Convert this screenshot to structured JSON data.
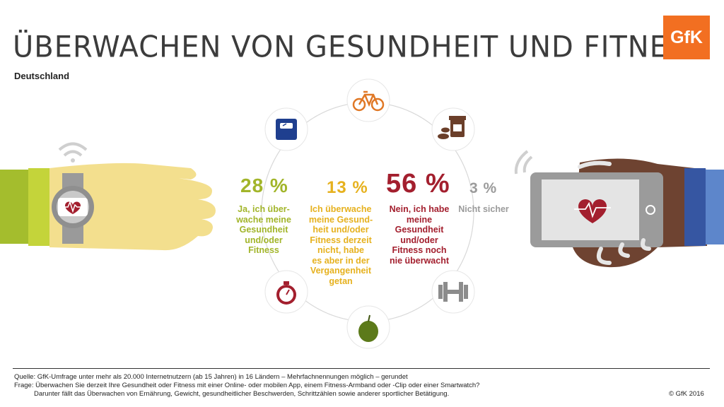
{
  "header": {
    "title": "ÜBERWACHEN VON GESUNDHEIT UND FITNESS",
    "subtitle": "Deutschland",
    "logo": "GfK"
  },
  "colors": {
    "yes": "#a2b52a",
    "formerly": "#e6b11e",
    "no": "#a31f2e",
    "unsure": "#9b9b9b",
    "brand": "#f26f21"
  },
  "icons": [
    "bicycle-icon",
    "supplements-icon",
    "dumbbell-icon",
    "apple-icon",
    "stopwatch-icon",
    "scale-icon",
    "smartwatch-icon",
    "smartphone-icon",
    "wifi-icon"
  ],
  "chart_data": {
    "type": "table",
    "title": "ÜBERWACHEN VON GESUNDHEIT UND FITNESS",
    "subtitle": "Deutschland",
    "unit": "%",
    "items": [
      {
        "value": 28,
        "value_label": "28 %",
        "label": "Ja, ich über-wache meine Gesundheit und/oder Fitness"
      },
      {
        "value": 13,
        "value_label": "13 %",
        "label": "Ich überwache meine Gesund-heit und/oder Fitness derzeit nicht, habe es aber in der Vergangenheit getan"
      },
      {
        "value": 56,
        "value_label": "56 %",
        "label": "Nein, ich habe meine Gesundheit und/oder Fitness noch nie überwacht"
      },
      {
        "value": 3,
        "value_label": "3 %",
        "label": "Nicht sicher"
      }
    ]
  },
  "labels": {
    "yes": [
      "Ja, ich über-",
      "wache meine",
      "Gesundheit",
      "und/oder",
      "Fitness"
    ],
    "formerly": [
      "Ich überwache",
      "meine Gesund-",
      "heit und/oder",
      "Fitness derzeit",
      "nicht, habe",
      "es aber in der",
      "Vergangenheit",
      "getan"
    ],
    "no": [
      "Nein, ich habe",
      "meine",
      "Gesundheit",
      "und/oder",
      "Fitness noch",
      "nie überwacht"
    ],
    "unsure": [
      "Nicht sicher"
    ]
  },
  "footer": {
    "source": "Quelle: GfK-Umfrage unter mehr als 20.000 Internetnutzern (ab 15 Jahren) in 16 Ländern – Mehrfachnennungen möglich – gerundet",
    "question": "Frage: Überwachen Sie derzeit Ihre Gesundheit oder Fitness mit einer Online- oder mobilen App, einem Fitness-Armband  oder -Clip oder einer Smartwatch?",
    "note": "Darunter fällt das Überwachen von Ernährung, Gewicht, gesundheitlicher Beschwerden, Schrittzählen sowie anderer sportlicher Betätigung.",
    "copyright": "© GfK 2016"
  }
}
